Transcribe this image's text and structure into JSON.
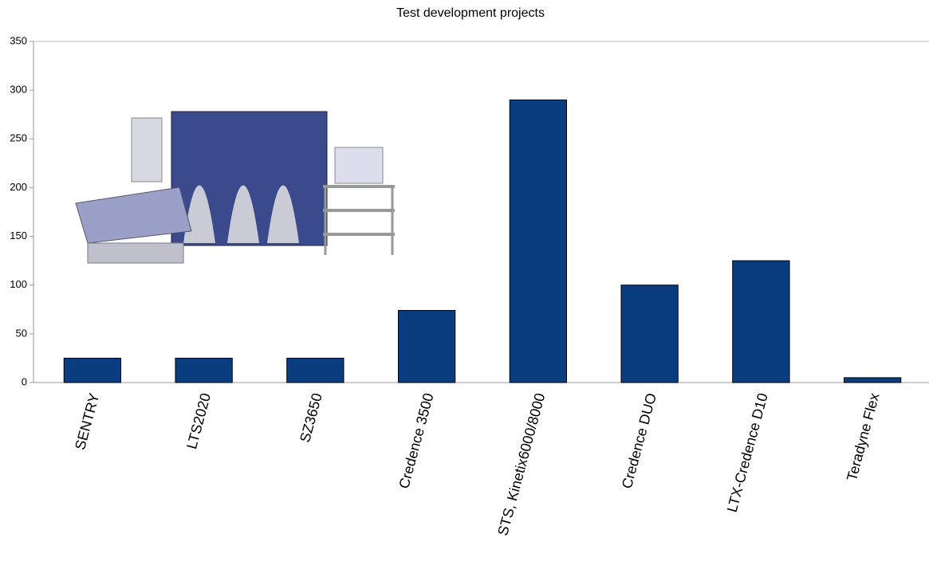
{
  "chart_data": {
    "type": "bar",
    "title": "Test development projects",
    "categories": [
      "SENTRY",
      "LTS2020",
      "SZ3650",
      "Credence 3500",
      "STS, Kinetix6000/8000",
      "Credence DUO",
      "LTX-Credence D10",
      "Teradyne Flex"
    ],
    "values": [
      25,
      25,
      25,
      74,
      290,
      100,
      125,
      5
    ],
    "color": "#0a3d7f",
    "ylim": [
      0,
      350
    ],
    "yticks": [
      0,
      50,
      100,
      150,
      200,
      250,
      300,
      350
    ],
    "grid": false
  }
}
